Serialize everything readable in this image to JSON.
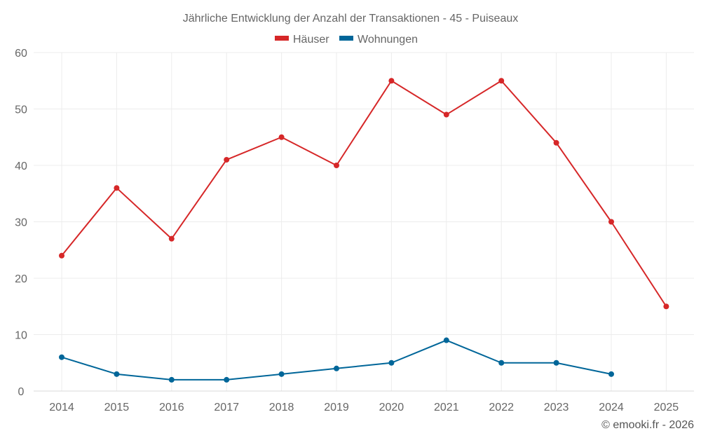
{
  "chart_data": {
    "type": "line",
    "title": "Jährliche Entwicklung der Anzahl der Transaktionen - 45 - Puiseaux",
    "categories": [
      "2014",
      "2015",
      "2016",
      "2017",
      "2018",
      "2019",
      "2020",
      "2021",
      "2022",
      "2023",
      "2024",
      "2025"
    ],
    "series": [
      {
        "name": "Häuser",
        "color": "#d62728",
        "values": [
          24,
          36,
          27,
          41,
          45,
          40,
          55,
          49,
          55,
          44,
          30,
          15
        ]
      },
      {
        "name": "Wohnungen",
        "color": "#006699",
        "values": [
          6,
          3,
          2,
          2,
          3,
          4,
          5,
          9,
          5,
          5,
          3,
          null
        ]
      }
    ],
    "xlabel": "",
    "ylabel": "",
    "ylim": [
      0,
      60
    ],
    "yticks": [
      0,
      10,
      20,
      30,
      40,
      50,
      60
    ],
    "grid": true,
    "legend_position": "top-center"
  },
  "footer": {
    "copyright": "© emooki.fr - 2026"
  }
}
